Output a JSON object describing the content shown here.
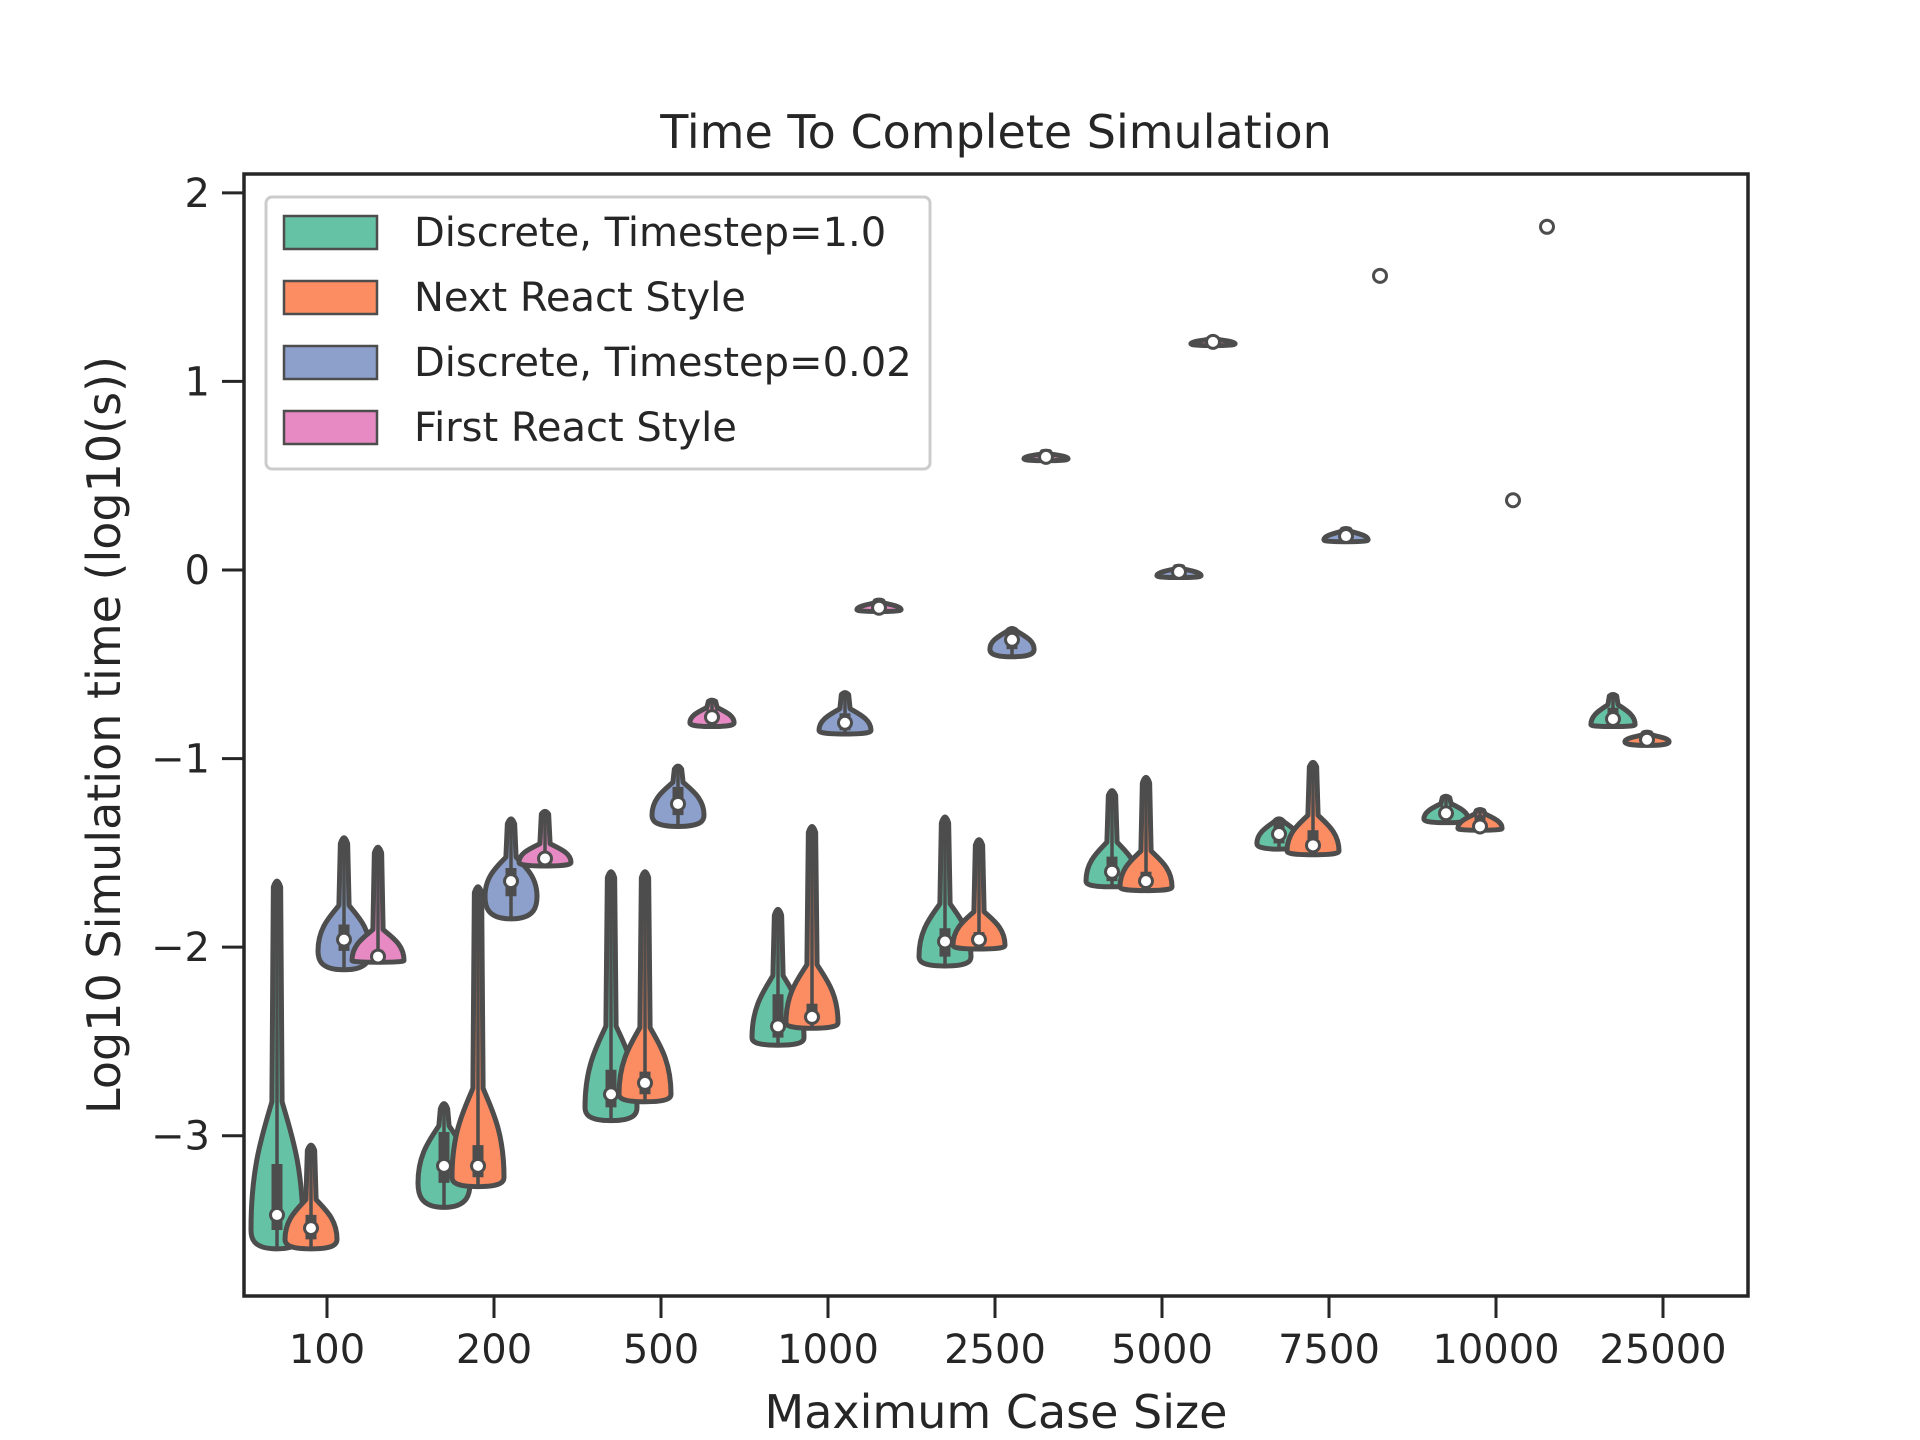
{
  "chart_data": {
    "type": "violin",
    "title": "Time To Complete Simulation",
    "xlabel": "Maximum Case Size",
    "ylabel": "Log10 Simulation time (log10(s))",
    "categories": [
      "100",
      "200",
      "500",
      "1000",
      "2500",
      "5000",
      "7500",
      "10000",
      "25000"
    ],
    "ylim": [
      -3.85,
      2.1
    ],
    "yticks": [
      {
        "value": 2,
        "label": "2"
      },
      {
        "value": 1,
        "label": "1"
      },
      {
        "value": 0,
        "label": "0"
      },
      {
        "value": -1,
        "label": "−1"
      },
      {
        "value": -2,
        "label": "−2"
      },
      {
        "value": -3,
        "label": "−3"
      }
    ],
    "grid": false,
    "legend_position": "top-left",
    "series": [
      {
        "name": "Discrete, Timestep=1.0",
        "color": "#66c2a5",
        "stats": [
          {
            "min": -3.6,
            "q1": -3.5,
            "median": -3.42,
            "q3": -3.15,
            "max": -1.65
          },
          {
            "min": -3.38,
            "q1": -3.25,
            "median": -3.16,
            "q3": -2.98,
            "max": -2.83
          },
          {
            "min": -2.92,
            "q1": -2.85,
            "median": -2.78,
            "q3": -2.65,
            "max": -1.6
          },
          {
            "min": -2.52,
            "q1": -2.48,
            "median": -2.42,
            "q3": -2.25,
            "max": -1.8
          },
          {
            "min": -2.1,
            "q1": -2.05,
            "median": -1.97,
            "q3": -1.9,
            "max": -1.31
          },
          {
            "min": -1.68,
            "q1": -1.65,
            "median": -1.6,
            "q3": -1.52,
            "max": -1.17
          },
          {
            "min": -1.48,
            "q1": -1.45,
            "median": -1.4,
            "q3": -1.34,
            "max": -1.32
          },
          {
            "min": -1.34,
            "q1": -1.32,
            "median": -1.29,
            "q3": -1.25,
            "max": -1.2
          },
          {
            "min": -0.83,
            "q1": -0.82,
            "median": -0.79,
            "q3": -0.73,
            "max": -0.66
          }
        ]
      },
      {
        "name": "Next React Style",
        "color": "#fc8d62",
        "stats": [
          {
            "min": -3.6,
            "q1": -3.55,
            "median": -3.49,
            "q3": -3.42,
            "max": -3.05
          },
          {
            "min": -3.27,
            "q1": -3.22,
            "median": -3.16,
            "q3": -3.05,
            "max": -1.68
          },
          {
            "min": -2.82,
            "q1": -2.78,
            "median": -2.72,
            "q3": -2.66,
            "max": -1.6
          },
          {
            "min": -2.43,
            "q1": -2.4,
            "median": -2.37,
            "q3": -2.3,
            "max": -1.36
          },
          {
            "min": -2.01,
            "q1": -1.99,
            "median": -1.96,
            "q3": -1.92,
            "max": -1.43
          },
          {
            "min": -1.7,
            "q1": -1.68,
            "median": -1.65,
            "q3": -1.6,
            "max": -1.1
          },
          {
            "min": -1.51,
            "q1": -1.49,
            "median": -1.46,
            "q3": -1.38,
            "max": -1.02
          },
          {
            "min": -1.38,
            "q1": -1.37,
            "median": -1.36,
            "q3": -1.3,
            "max": -1.27
          },
          {
            "min": -0.93,
            "q1": -0.91,
            "median": -0.9,
            "q3": -0.88,
            "max": -0.86
          }
        ]
      },
      {
        "name": "Discrete, Timestep=0.02",
        "color": "#8da0cb",
        "stats": [
          {
            "min": -2.12,
            "q1": -2.02,
            "median": -1.96,
            "q3": -1.88,
            "max": -1.42
          },
          {
            "min": -1.85,
            "q1": -1.73,
            "median": -1.65,
            "q3": -1.58,
            "max": -1.32
          },
          {
            "min": -1.36,
            "q1": -1.3,
            "median": -1.24,
            "q3": -1.15,
            "max": -1.04
          },
          {
            "min": -0.87,
            "q1": -0.85,
            "median": -0.81,
            "q3": -0.76,
            "max": -0.65
          },
          {
            "min": -0.46,
            "q1": -0.42,
            "median": -0.37,
            "q3": -0.33,
            "max": -0.31
          },
          {
            "min": -0.04,
            "q1": -0.03,
            "median": -0.01,
            "q3": 0.0,
            "max": 0.02
          },
          {
            "min": 0.15,
            "q1": 0.16,
            "median": 0.18,
            "q3": 0.2,
            "max": 0.22
          },
          {
            "min": 0.36,
            "q1": 0.36,
            "median": 0.37,
            "q3": 0.37,
            "max": 0.38
          },
          null
        ]
      },
      {
        "name": "First React Style",
        "color": "#e78ac3",
        "stats": [
          {
            "min": -2.08,
            "q1": -2.07,
            "median": -2.05,
            "q3": -2.03,
            "max": -1.47
          },
          {
            "min": -1.57,
            "q1": -1.55,
            "median": -1.53,
            "q3": -1.5,
            "max": -1.28
          },
          {
            "min": -0.83,
            "q1": -0.81,
            "median": -0.78,
            "q3": -0.74,
            "max": -0.69
          },
          {
            "min": -0.22,
            "q1": -0.21,
            "median": -0.2,
            "q3": -0.18,
            "max": -0.16
          },
          {
            "min": 0.58,
            "q1": 0.59,
            "median": 0.6,
            "q3": 0.61,
            "max": 0.63
          },
          {
            "min": 1.19,
            "q1": 1.2,
            "median": 1.21,
            "q3": 1.22,
            "max": 1.23
          },
          {
            "min": 1.56,
            "q1": 1.56,
            "median": 1.56,
            "q3": 1.56,
            "max": 1.56
          },
          {
            "min": 1.82,
            "q1": 1.82,
            "median": 1.82,
            "q3": 1.82,
            "max": 1.82
          },
          null
        ]
      }
    ]
  }
}
